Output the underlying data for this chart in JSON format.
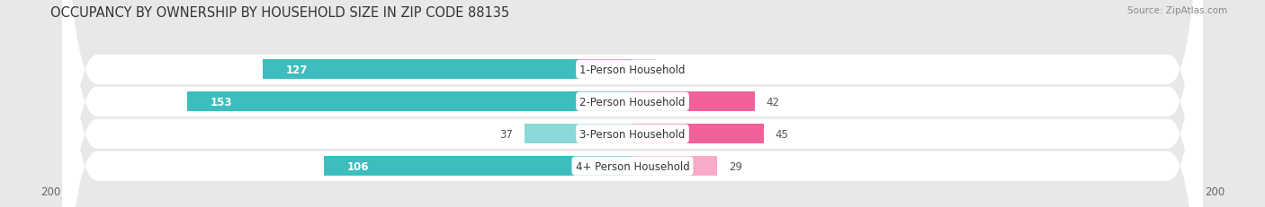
{
  "title": "OCCUPANCY BY OWNERSHIP BY HOUSEHOLD SIZE IN ZIP CODE 88135",
  "source": "Source: ZipAtlas.com",
  "categories": [
    "1-Person Household",
    "2-Person Household",
    "3-Person Household",
    "4+ Person Household"
  ],
  "owner_values": [
    127,
    153,
    37,
    106
  ],
  "renter_values": [
    8,
    42,
    45,
    29
  ],
  "owner_color_dark": "#3dbdbd",
  "owner_color_light": "#8dd8d8",
  "renter_color_dark": "#f0609a",
  "renter_color_light": "#f8aac8",
  "bg_color": "#e8e8e8",
  "row_bg_color": "#ffffff",
  "axis_max": 200,
  "bar_height": 0.62,
  "title_fontsize": 10.5,
  "source_fontsize": 7.5,
  "legend_fontsize": 8.5,
  "bar_label_fontsize": 8.5,
  "category_fontsize": 8.5,
  "tick_fontsize": 8.5,
  "owner_threshold": 80,
  "renter_dark_threshold": 30
}
